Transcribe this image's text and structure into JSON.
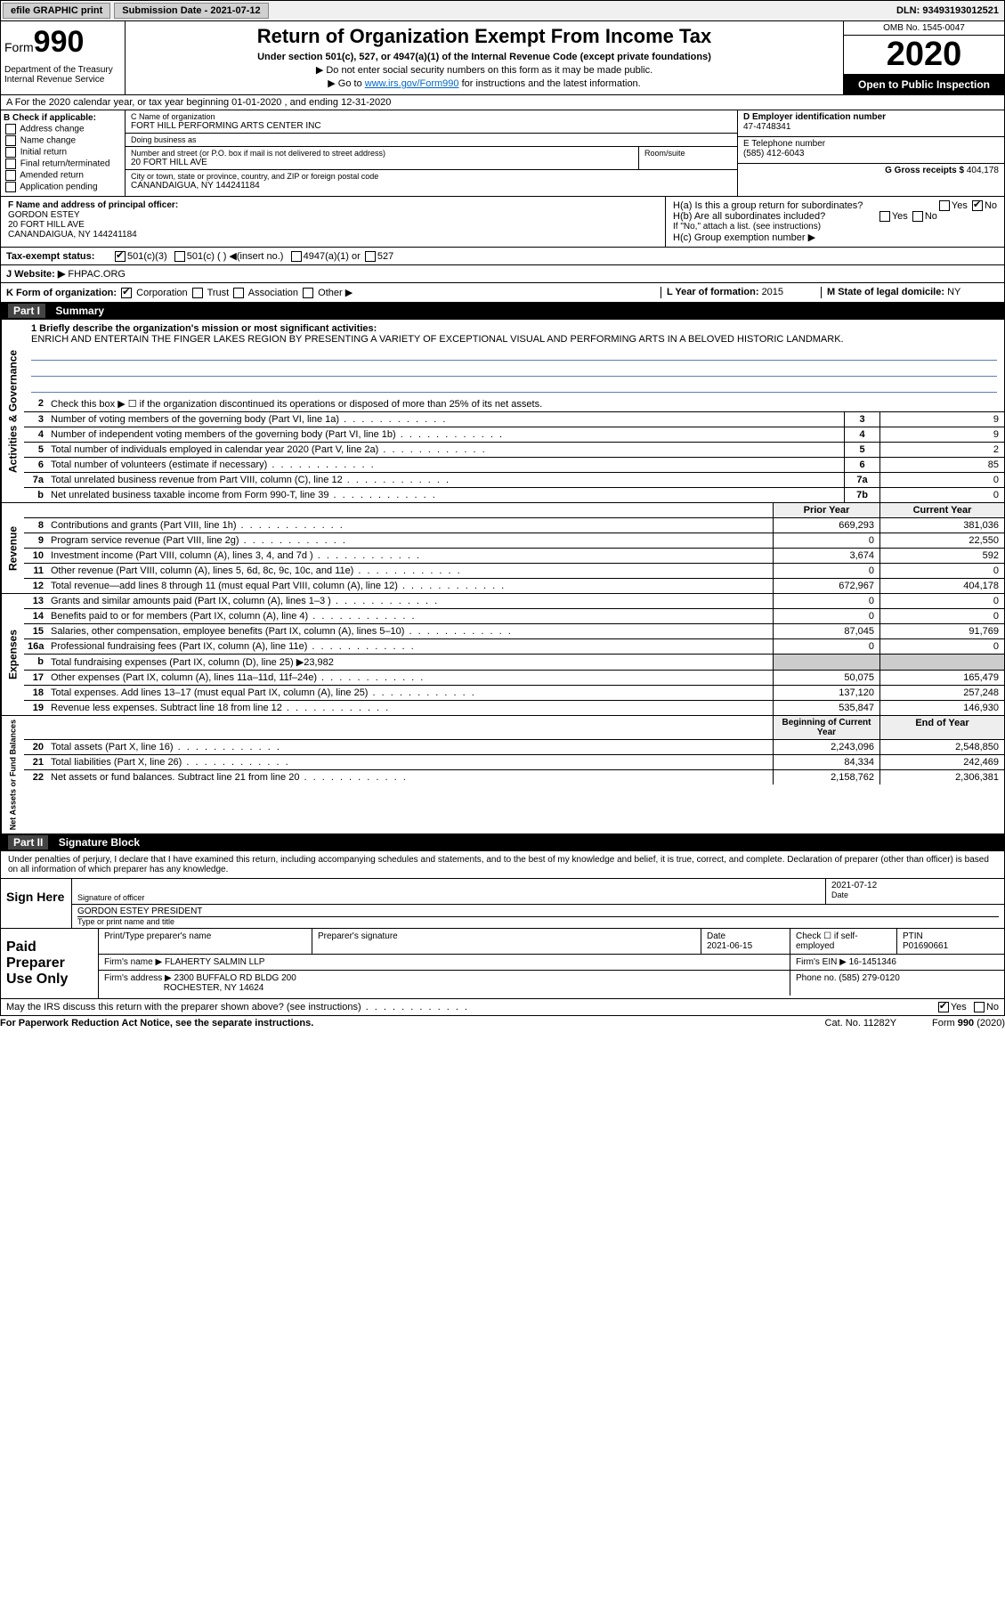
{
  "topbar": {
    "efile": "efile GRAPHIC print",
    "subdate_label": "Submission Date - ",
    "subdate": "2021-07-12",
    "dln_label": "DLN: ",
    "dln": "93493193012521"
  },
  "header": {
    "form_prefix": "Form",
    "form_num": "990",
    "dept": "Department of the Treasury\nInternal Revenue Service",
    "title": "Return of Organization Exempt From Income Tax",
    "sub": "Under section 501(c), 527, or 4947(a)(1) of the Internal Revenue Code (except private foundations)",
    "sub2a": "▶ Do not enter social security numbers on this form as it may be made public.",
    "sub2b_pre": "▶ Go to ",
    "sub2b_link": "www.irs.gov/Form990",
    "sub2b_post": " for instructions and the latest information.",
    "omb": "OMB No. 1545-0047",
    "year": "2020",
    "inspect": "Open to Public Inspection"
  },
  "A_line": "A  For the 2020 calendar year, or tax year beginning 01-01-2020    , and ending 12-31-2020",
  "B": {
    "label": "B Check if applicable:",
    "opts": [
      "Address change",
      "Name change",
      "Initial return",
      "Final return/terminated",
      "Amended return",
      "Application pending"
    ]
  },
  "C": {
    "name_label": "C Name of organization",
    "name": "FORT HILL PERFORMING ARTS CENTER INC",
    "dba_label": "Doing business as",
    "dba": "",
    "addr_label": "Number and street (or P.O. box if mail is not delivered to street address)",
    "room_label": "Room/suite",
    "addr": "20 FORT HILL AVE",
    "city_label": "City or town, state or province, country, and ZIP or foreign postal code",
    "city": "CANANDAIGUA, NY  144241184"
  },
  "D": {
    "label": "D Employer identification number",
    "value": "47-4748341"
  },
  "E": {
    "label": "E Telephone number",
    "value": "(585) 412-6043"
  },
  "G": {
    "label": "G Gross receipts $ ",
    "value": "404,178"
  },
  "F": {
    "label": "F  Name and address of principal officer:",
    "name": "GORDON ESTEY",
    "addr1": "20 FORT HILL AVE",
    "addr2": "CANANDAIGUA, NY  144241184"
  },
  "H": {
    "a": "H(a)  Is this a group return for subordinates?",
    "b": "H(b)  Are all subordinates included?",
    "b_note": "If \"No,\" attach a list. (see instructions)",
    "c": "H(c)  Group exemption number ▶",
    "yes": "Yes",
    "no": "No"
  },
  "I": {
    "label": "Tax-exempt status:",
    "o1": "501(c)(3)",
    "o2": "501(c) (  ) ◀(insert no.)",
    "o3": "4947(a)(1) or",
    "o4": "527"
  },
  "J": {
    "label": "J  Website: ▶",
    "value": "FHPAC.ORG"
  },
  "K": {
    "label": "K Form of organization:",
    "o1": "Corporation",
    "o2": "Trust",
    "o3": "Association",
    "o4": "Other ▶"
  },
  "L": {
    "label": "L Year of formation: ",
    "value": "2015"
  },
  "M": {
    "label": "M State of legal domicile: ",
    "value": "NY"
  },
  "parts": {
    "p1": "Part I",
    "p1t": "Summary",
    "p2": "Part II",
    "p2t": "Signature Block"
  },
  "summary": {
    "l1_label": "1  Briefly describe the organization's mission or most significant activities:",
    "mission": "ENRICH AND ENTERTAIN THE FINGER LAKES REGION BY PRESENTING A VARIETY OF EXCEPTIONAL VISUAL AND PERFORMING ARTS IN A BELOVED HISTORIC LANDMARK.",
    "l2": "Check this box ▶ ☐  if the organization discontinued its operations or disposed of more than 25% of its net assets.",
    "rows_top": [
      {
        "n": "3",
        "t": "Number of voting members of the governing body (Part VI, line 1a)",
        "b": "3",
        "v": "9"
      },
      {
        "n": "4",
        "t": "Number of independent voting members of the governing body (Part VI, line 1b)",
        "b": "4",
        "v": "9"
      },
      {
        "n": "5",
        "t": "Total number of individuals employed in calendar year 2020 (Part V, line 2a)",
        "b": "5",
        "v": "2"
      },
      {
        "n": "6",
        "t": "Total number of volunteers (estimate if necessary)",
        "b": "6",
        "v": "85"
      },
      {
        "n": "7a",
        "t": "Total unrelated business revenue from Part VIII, column (C), line 12",
        "b": "7a",
        "v": "0"
      },
      {
        "n": "b",
        "t": "Net unrelated business taxable income from Form 990-T, line 39",
        "b": "7b",
        "v": "0"
      }
    ],
    "hdr_prior": "Prior Year",
    "hdr_curr": "Current Year",
    "rev": [
      {
        "n": "8",
        "t": "Contributions and grants (Part VIII, line 1h)",
        "p": "669,293",
        "c": "381,036"
      },
      {
        "n": "9",
        "t": "Program service revenue (Part VIII, line 2g)",
        "p": "0",
        "c": "22,550"
      },
      {
        "n": "10",
        "t": "Investment income (Part VIII, column (A), lines 3, 4, and 7d )",
        "p": "3,674",
        "c": "592"
      },
      {
        "n": "11",
        "t": "Other revenue (Part VIII, column (A), lines 5, 6d, 8c, 9c, 10c, and 11e)",
        "p": "0",
        "c": "0"
      },
      {
        "n": "12",
        "t": "Total revenue—add lines 8 through 11 (must equal Part VIII, column (A), line 12)",
        "p": "672,967",
        "c": "404,178"
      }
    ],
    "exp": [
      {
        "n": "13",
        "t": "Grants and similar amounts paid (Part IX, column (A), lines 1–3 )",
        "p": "0",
        "c": "0"
      },
      {
        "n": "14",
        "t": "Benefits paid to or for members (Part IX, column (A), line 4)",
        "p": "0",
        "c": "0"
      },
      {
        "n": "15",
        "t": "Salaries, other compensation, employee benefits (Part IX, column (A), lines 5–10)",
        "p": "87,045",
        "c": "91,769"
      },
      {
        "n": "16a",
        "t": "Professional fundraising fees (Part IX, column (A), line 11e)",
        "p": "0",
        "c": "0"
      },
      {
        "n": "b",
        "t": "Total fundraising expenses (Part IX, column (D), line 25) ▶23,982",
        "p": "",
        "c": "",
        "shade": true
      },
      {
        "n": "17",
        "t": "Other expenses (Part IX, column (A), lines 11a–11d, 11f–24e)",
        "p": "50,075",
        "c": "165,479"
      },
      {
        "n": "18",
        "t": "Total expenses. Add lines 13–17 (must equal Part IX, column (A), line 25)",
        "p": "137,120",
        "c": "257,248"
      },
      {
        "n": "19",
        "t": "Revenue less expenses. Subtract line 18 from line 12",
        "p": "535,847",
        "c": "146,930"
      }
    ],
    "hdr2_beg": "Beginning of Current Year",
    "hdr2_end": "End of Year",
    "net": [
      {
        "n": "20",
        "t": "Total assets (Part X, line 16)",
        "p": "2,243,096",
        "c": "2,548,850"
      },
      {
        "n": "21",
        "t": "Total liabilities (Part X, line 26)",
        "p": "84,334",
        "c": "242,469"
      },
      {
        "n": "22",
        "t": "Net assets or fund balances. Subtract line 21 from line 20",
        "p": "2,158,762",
        "c": "2,306,381"
      }
    ],
    "side_act": "Activities & Governance",
    "side_rev": "Revenue",
    "side_exp": "Expenses",
    "side_net": "Net Assets or Fund Balances"
  },
  "decl": "Under penalties of perjury, I declare that I have examined this return, including accompanying schedules and statements, and to the best of my knowledge and belief, it is true, correct, and complete. Declaration of preparer (other than officer) is based on all information of which preparer has any knowledge.",
  "sign": {
    "here": "Sign Here",
    "sig_label": "Signature of officer",
    "date_label": "Date",
    "date": "2021-07-12",
    "name": "GORDON ESTEY PRESIDENT",
    "name_label": "Type or print name and title"
  },
  "paid": {
    "title": "Paid Preparer Use Only",
    "h1": "Print/Type preparer's name",
    "h2": "Preparer's signature",
    "h3": "Date",
    "h4": "Check ☐ if self-employed",
    "h5": "PTIN",
    "date": "2021-06-15",
    "ptin": "P01690661",
    "firm_label": "Firm's name   ▶",
    "firm": "FLAHERTY SALMIN LLP",
    "ein_label": "Firm's EIN ▶",
    "ein": "16-1451346",
    "addr_label": "Firm's address ▶",
    "addr1": "2300 BUFFALO RD BLDG 200",
    "addr2": "ROCHESTER, NY  14624",
    "phone_label": "Phone no. ",
    "phone": "(585) 279-0120",
    "discuss": "May the IRS discuss this return with the preparer shown above? (see instructions)"
  },
  "footer": {
    "l": "For Paperwork Reduction Act Notice, see the separate instructions.",
    "m": "Cat. No. 11282Y",
    "r": "Form 990 (2020)"
  }
}
